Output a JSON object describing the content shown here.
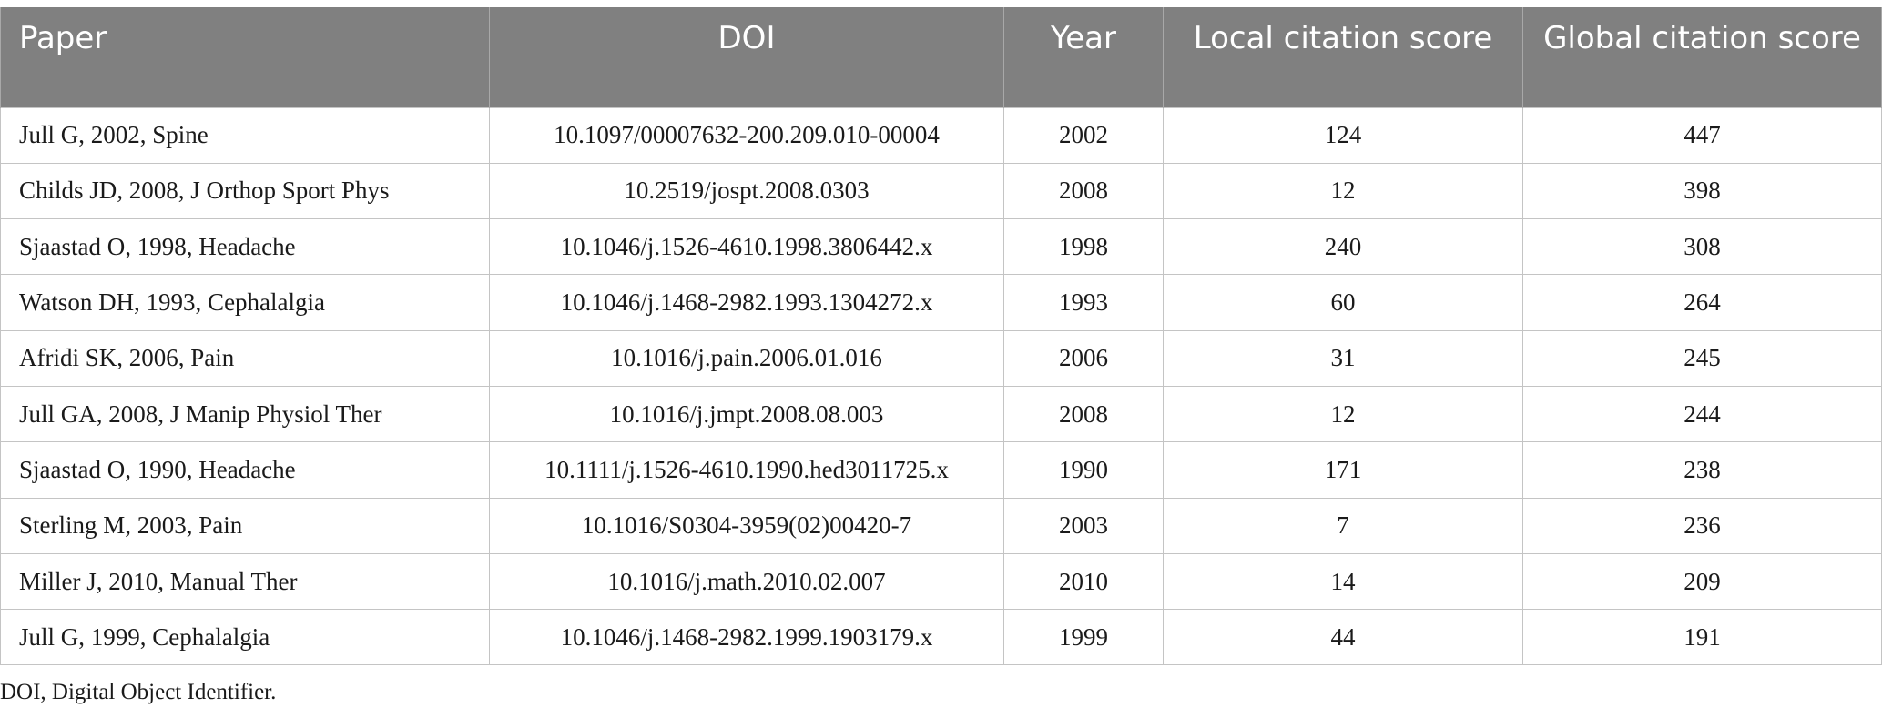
{
  "table": {
    "headers": {
      "paper": "Paper",
      "doi": "DOI",
      "year": "Year",
      "local": "Local citation score",
      "global": "Global citation score"
    },
    "rows": [
      {
        "paper": "Jull G, 2002, Spine",
        "doi": "10.1097/00007632-200.209.010-00004",
        "year": "2002",
        "local": "124",
        "global": "447"
      },
      {
        "paper": "Childs JD, 2008, J Orthop Sport Phys",
        "doi": "10.2519/jospt.2008.0303",
        "year": "2008",
        "local": "12",
        "global": "398"
      },
      {
        "paper": "Sjaastad O, 1998, Headache",
        "doi": "10.1046/j.1526-4610.1998.3806442.x",
        "year": "1998",
        "local": "240",
        "global": "308"
      },
      {
        "paper": "Watson DH, 1993, Cephalalgia",
        "doi": "10.1046/j.1468-2982.1993.1304272.x",
        "year": "1993",
        "local": "60",
        "global": "264"
      },
      {
        "paper": "Afridi SK, 2006, Pain",
        "doi": "10.1016/j.pain.2006.01.016",
        "year": "2006",
        "local": "31",
        "global": "245"
      },
      {
        "paper": "Jull GA, 2008, J Manip Physiol Ther",
        "doi": "10.1016/j.jmpt.2008.08.003",
        "year": "2008",
        "local": "12",
        "global": "244"
      },
      {
        "paper": "Sjaastad O, 1990, Headache",
        "doi": "10.1111/j.1526-4610.1990.hed3011725.x",
        "year": "1990",
        "local": "171",
        "global": "238"
      },
      {
        "paper": "Sterling M, 2003, Pain",
        "doi": "10.1016/S0304-3959(02)00420-7",
        "year": "2003",
        "local": "7",
        "global": "236"
      },
      {
        "paper": "Miller J, 2010, Manual Ther",
        "doi": "10.1016/j.math.2010.02.007",
        "year": "2010",
        "local": "14",
        "global": "209"
      },
      {
        "paper": "Jull G, 1999, Cephalalgia",
        "doi": "10.1046/j.1468-2982.1999.1903179.x",
        "year": "1999",
        "local": "44",
        "global": "191"
      }
    ]
  },
  "footnote": "DOI, Digital Object Identifier.",
  "colors": {
    "header_bg": "#808080",
    "header_text": "#ffffff",
    "grid": "#c4c4c4"
  }
}
